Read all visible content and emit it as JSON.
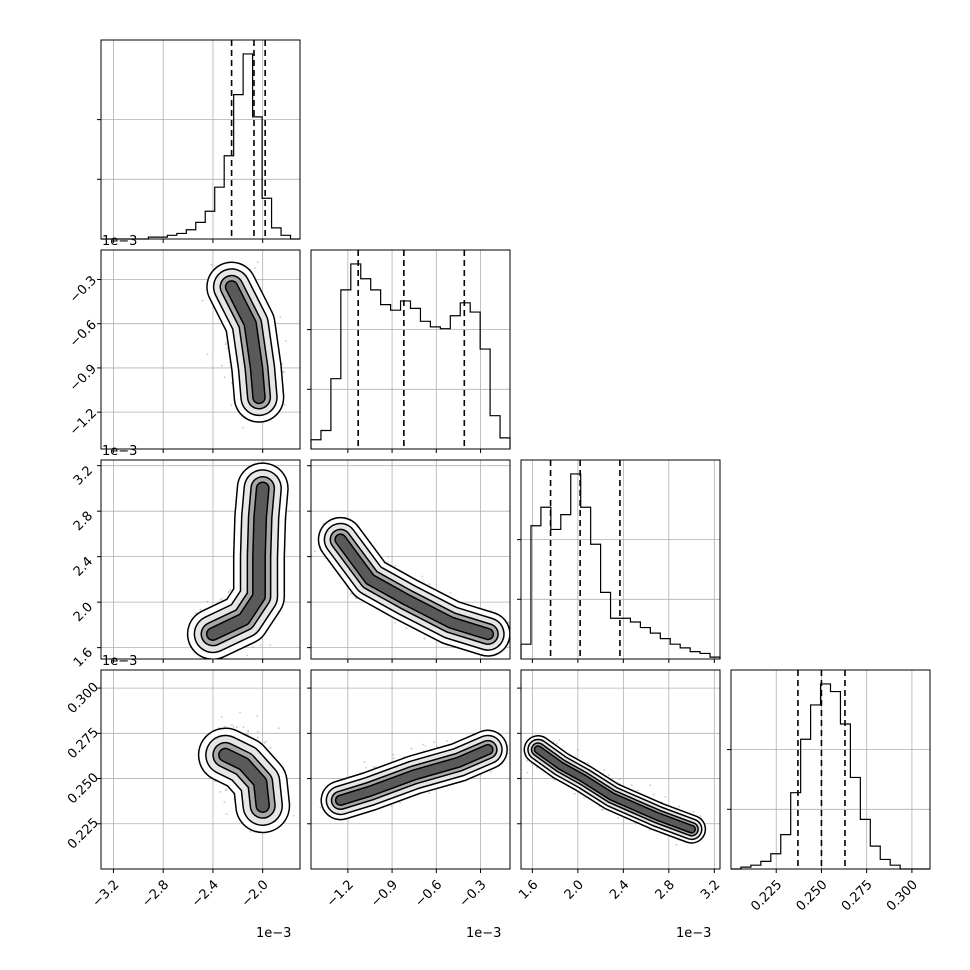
{
  "chart_data": {
    "type": "corner",
    "grid": true,
    "parameters": [
      {
        "range": [
          -3.3,
          -1.7
        ],
        "ticks": [
          -3.2,
          -2.8,
          -2.4,
          -2.0
        ],
        "tick_labels": [
          "−3.2",
          "−2.8",
          "−2.4",
          "−2.0"
        ],
        "offset": "1e−3"
      },
      {
        "range": [
          -1.45,
          -0.1
        ],
        "ticks": [
          -1.2,
          -0.9,
          -0.6,
          -0.3
        ],
        "tick_labels": [
          "−1.2",
          "−0.9",
          "−0.6",
          "−0.3"
        ],
        "offset": "1e−3"
      },
      {
        "range": [
          1.5,
          3.25
        ],
        "ticks": [
          1.6,
          2.0,
          2.4,
          2.8,
          3.2
        ],
        "tick_labels": [
          "1.6",
          "2.0",
          "2.4",
          "2.8",
          "3.2"
        ],
        "offset": "1e−3"
      },
      {
        "range": [
          0.2,
          0.31
        ],
        "ticks": [
          0.225,
          0.25,
          0.275,
          0.3
        ],
        "tick_labels": [
          "0.225",
          "0.250",
          "0.275",
          "0.300"
        ],
        "offset": ""
      }
    ],
    "histograms": [
      {
        "bin_edges_range": [
          -3.3,
          -1.7
        ],
        "counts": [
          0,
          0,
          0,
          0,
          0,
          1,
          1,
          2,
          3,
          5,
          9,
          15,
          28,
          45,
          78,
          100,
          66,
          22,
          6,
          2,
          0
        ],
        "quantiles": [
          -2.25,
          -2.07,
          -1.98
        ]
      },
      {
        "bin_edges_range": [
          -1.45,
          -0.1
        ],
        "counts": [
          5,
          10,
          38,
          86,
          100,
          92,
          86,
          78,
          75,
          80,
          76,
          69,
          66,
          65,
          72,
          79,
          74,
          54,
          18,
          6
        ],
        "quantiles": [
          -1.13,
          -0.82,
          -0.41
        ]
      },
      {
        "bin_edges_range": [
          1.5,
          3.25
        ],
        "counts": [
          8,
          72,
          82,
          70,
          78,
          100,
          82,
          62,
          36,
          22,
          22,
          20,
          17,
          14,
          11,
          8,
          6,
          4,
          3,
          1
        ],
        "quantiles": [
          1.76,
          2.02,
          2.37
        ]
      },
      {
        "bin_edges_range": [
          0.2,
          0.31
        ],
        "counts": [
          0,
          1,
          2,
          4,
          8,
          18,
          40,
          68,
          86,
          97,
          93,
          76,
          48,
          26,
          12,
          5,
          2,
          0,
          0,
          0
        ],
        "quantiles": [
          0.237,
          0.25,
          0.263
        ]
      }
    ],
    "correlations": [
      {
        "x": 0,
        "y": 1,
        "anchor": [
          [
            -2.25,
            -0.35
          ],
          [
            -2.1,
            -0.6
          ],
          [
            -2.05,
            -0.9
          ],
          [
            -2.03,
            -1.1
          ]
        ],
        "spread": [
          0.08,
          0.09
        ]
      },
      {
        "x": 0,
        "y": 2,
        "anchor": [
          [
            -2.4,
            1.72
          ],
          [
            -2.15,
            1.85
          ],
          [
            -2.03,
            2.05
          ],
          [
            -2.03,
            2.4
          ],
          [
            -2.02,
            2.75
          ],
          [
            -2.0,
            3.0
          ]
        ],
        "spread": [
          0.07,
          0.12
        ]
      },
      {
        "x": 1,
        "y": 2,
        "anchor": [
          [
            -1.25,
            2.55
          ],
          [
            -1.05,
            2.2
          ],
          [
            -0.8,
            2.02
          ],
          [
            -0.5,
            1.82
          ],
          [
            -0.25,
            1.72
          ]
        ],
        "spread": [
          0.08,
          0.07
        ]
      },
      {
        "x": 0,
        "y": 3,
        "anchor": [
          [
            -2.3,
            0.263
          ],
          [
            -2.15,
            0.258
          ],
          [
            -2.02,
            0.248
          ],
          [
            -2.0,
            0.235
          ]
        ],
        "spread": [
          0.07,
          0.008
        ]
      },
      {
        "x": 1,
        "y": 3,
        "anchor": [
          [
            -1.25,
            0.238
          ],
          [
            -1.05,
            0.243
          ],
          [
            -0.75,
            0.252
          ],
          [
            -0.45,
            0.259
          ],
          [
            -0.25,
            0.266
          ]
        ],
        "spread": [
          0.07,
          0.004
        ]
      },
      {
        "x": 2,
        "y": 3,
        "anchor": [
          [
            1.65,
            0.266
          ],
          [
            1.85,
            0.257
          ],
          [
            2.05,
            0.25
          ],
          [
            2.3,
            0.24
          ],
          [
            2.7,
            0.229
          ],
          [
            3.0,
            0.222
          ]
        ],
        "spread": [
          0.06,
          0.004
        ]
      }
    ]
  }
}
